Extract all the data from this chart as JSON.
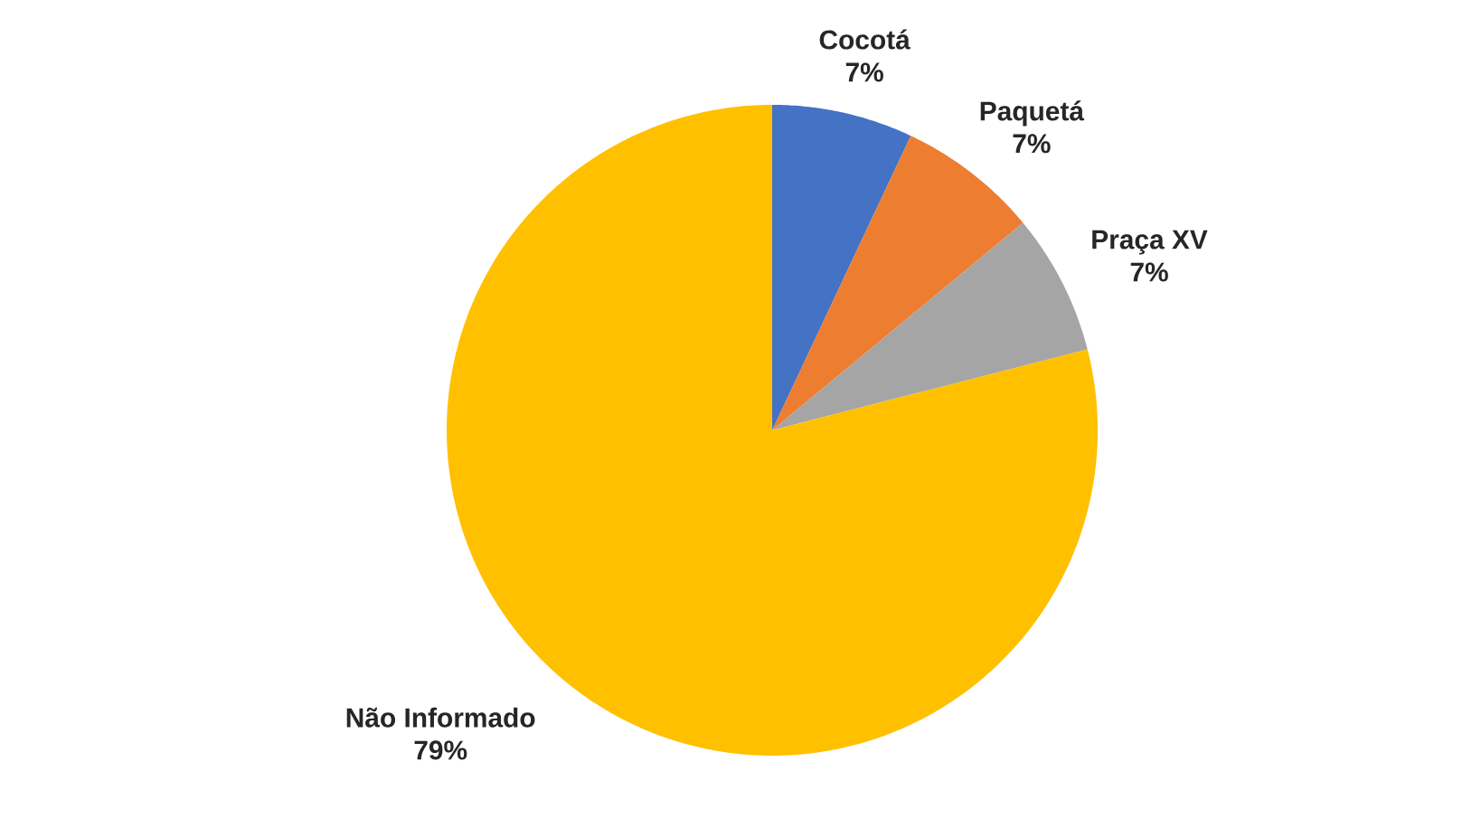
{
  "chart_data": {
    "type": "pie",
    "categories": [
      "Cocotá",
      "Paquetá",
      "Praça XV",
      "Não Informado"
    ],
    "values": [
      7,
      7,
      7,
      79
    ],
    "value_labels": [
      "7%",
      "7%",
      "7%",
      "79%"
    ],
    "colors": [
      "#4472c4",
      "#ed7d31",
      "#a5a5a5",
      "#ffc000"
    ]
  }
}
